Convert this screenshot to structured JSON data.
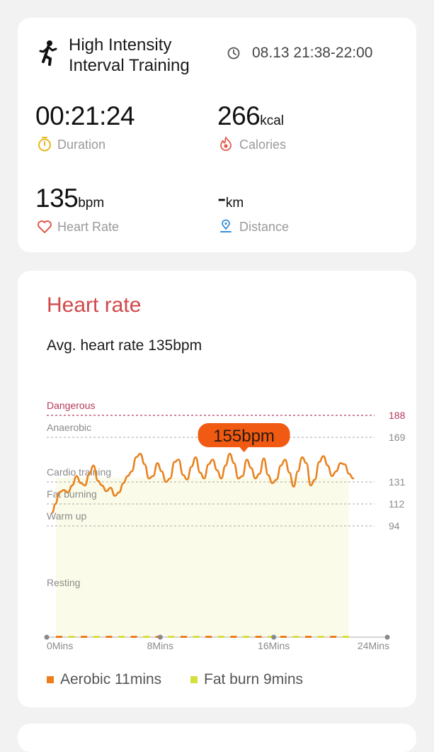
{
  "workout": {
    "title": "High Intensity Interval Training",
    "time_range": "08.13 21:38-22:00"
  },
  "stats": {
    "duration": {
      "value": "00:21:24",
      "unit": "",
      "label": "Duration"
    },
    "calories": {
      "value": "266",
      "unit": "kcal",
      "label": "Calories"
    },
    "heart_rate": {
      "value": "135",
      "unit": "bpm",
      "label": "Heart Rate"
    },
    "distance": {
      "value": "-",
      "unit": "km",
      "label": "Distance"
    }
  },
  "heart_rate_card": {
    "title": "Heart rate",
    "avg_text": "Avg. heart rate 135bpm",
    "tooltip": "155bpm",
    "legend": [
      {
        "label": "Aerobic 11mins",
        "color": "#f07d1c"
      },
      {
        "label": "Fat burn 9mins",
        "color": "#d7df3c"
      }
    ]
  },
  "colors": {
    "accent_red": "#d0494b",
    "line_orange": "#e8821e",
    "tooltip_orange": "#f05a12",
    "fill_yellow": "#fbfbe9",
    "dangerous": "#b63a5a"
  },
  "chart_data": {
    "type": "line",
    "x_tick_labels": [
      "0Mins",
      "8Mins",
      "16Mins",
      "24Mins"
    ],
    "xlim": [
      0,
      24
    ],
    "ylim": [
      40,
      200
    ],
    "zones": [
      {
        "name": "Dangerous",
        "value": 188
      },
      {
        "name": "Anaerobic",
        "value": 169
      },
      {
        "name": "Cardio training",
        "value": 131
      },
      {
        "name": "Fat burning",
        "value": 112
      },
      {
        "name": "Warm up",
        "value": 94
      },
      {
        "name": "Resting",
        "value": null
      }
    ],
    "tooltip_point": {
      "x": 13.6,
      "y": 155
    },
    "series": [
      {
        "x": [
          0.1,
          0.3,
          0.6,
          0.9,
          1.2,
          1.5,
          1.8,
          2.1,
          2.4,
          2.7,
          3.0,
          3.3,
          3.6,
          3.9,
          4.2,
          4.5,
          4.8,
          5.1,
          5.4,
          5.7,
          6.0,
          6.3,
          6.6,
          6.9,
          7.2,
          7.5,
          7.8,
          8.1,
          8.4,
          8.7,
          9.0,
          9.3,
          9.6,
          9.9,
          10.2,
          10.5,
          10.8,
          11.1,
          11.4,
          11.7,
          12.0,
          12.3,
          12.6,
          12.9,
          13.2,
          13.5,
          13.8,
          14.1,
          14.4,
          14.7,
          15.0,
          15.3,
          15.6,
          15.9,
          16.2,
          16.5,
          16.8,
          17.1,
          17.4,
          17.7,
          18.0,
          18.3,
          18.6,
          18.9,
          19.2,
          19.5,
          19.8,
          20.1,
          20.4,
          20.7,
          21.0,
          21.3
        ],
        "y": [
          105,
          112,
          122,
          124,
          122,
          128,
          136,
          130,
          128,
          138,
          145,
          132,
          128,
          123,
          126,
          119,
          122,
          130,
          136,
          140,
          152,
          155,
          146,
          134,
          136,
          147,
          140,
          131,
          134,
          148,
          150,
          137,
          133,
          144,
          152,
          139,
          134,
          146,
          150,
          141,
          134,
          145,
          155,
          147,
          134,
          136,
          150,
          143,
          134,
          138,
          151,
          137,
          130,
          133,
          145,
          150,
          139,
          127,
          140,
          152,
          147,
          128,
          133,
          148,
          153,
          145,
          136,
          140,
          147,
          146,
          138,
          134
        ]
      }
    ]
  }
}
